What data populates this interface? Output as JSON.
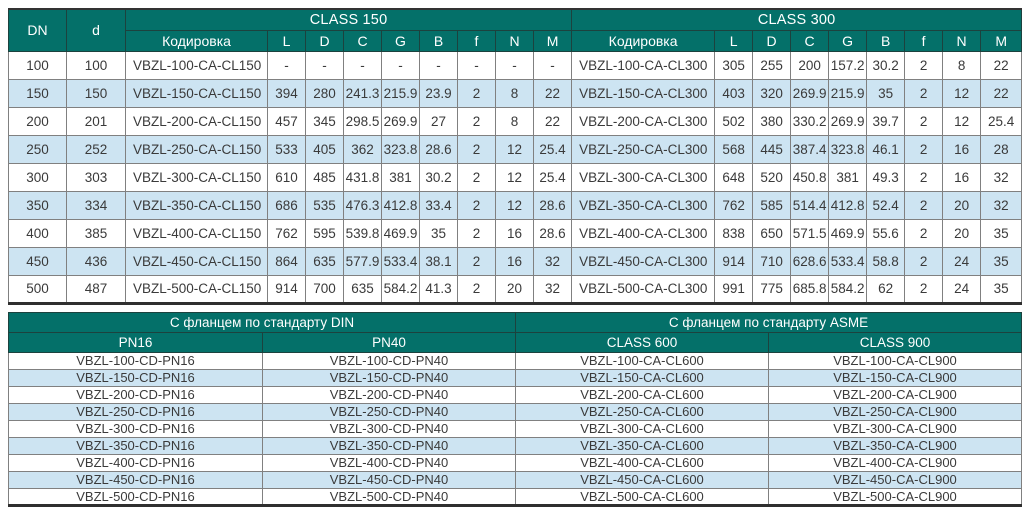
{
  "colors": {
    "header_bg": "#047069",
    "header_text": "#ffffff",
    "alt_row_bg": "#cde4f2",
    "row_bg": "#ffffff",
    "body_text": "#3a3a3a",
    "grid_border": "#808080",
    "outer_border": "#333333"
  },
  "spec_table": {
    "corner_headers": {
      "dn": "DN",
      "d": "d"
    },
    "groups": [
      {
        "label": "CLASS 150"
      },
      {
        "label": "CLASS 300"
      }
    ],
    "sub_headers": [
      "Кодировка",
      "L",
      "D",
      "C",
      "G",
      "B",
      "f",
      "N",
      "M"
    ],
    "rows": [
      {
        "dn": "100",
        "d": "100",
        "class150": {
          "code": "VBZL-100-CA-CL150",
          "values": [
            "-",
            "-",
            "-",
            "-",
            "-",
            "-",
            "-",
            "-"
          ]
        },
        "class300": {
          "code": "VBZL-100-CA-CL300",
          "values": [
            "305",
            "255",
            "200",
            "157.2",
            "30.2",
            "2",
            "8",
            "22"
          ]
        }
      },
      {
        "dn": "150",
        "d": "150",
        "class150": {
          "code": "VBZL-150-CA-CL150",
          "values": [
            "394",
            "280",
            "241.3",
            "215.9",
            "23.9",
            "2",
            "8",
            "22"
          ]
        },
        "class300": {
          "code": "VBZL-150-CA-CL300",
          "values": [
            "403",
            "320",
            "269.9",
            "215.9",
            "35",
            "2",
            "12",
            "22"
          ]
        }
      },
      {
        "dn": "200",
        "d": "201",
        "class150": {
          "code": "VBZL-200-CA-CL150",
          "values": [
            "457",
            "345",
            "298.5",
            "269.9",
            "27",
            "2",
            "8",
            "22"
          ]
        },
        "class300": {
          "code": "VBZL-200-CA-CL300",
          "values": [
            "502",
            "380",
            "330.2",
            "269.9",
            "39.7",
            "2",
            "12",
            "25.4"
          ]
        }
      },
      {
        "dn": "250",
        "d": "252",
        "class150": {
          "code": "VBZL-250-CA-CL150",
          "values": [
            "533",
            "405",
            "362",
            "323.8",
            "28.6",
            "2",
            "12",
            "25.4"
          ]
        },
        "class300": {
          "code": "VBZL-250-CA-CL300",
          "values": [
            "568",
            "445",
            "387.4",
            "323.8",
            "46.1",
            "2",
            "16",
            "28"
          ]
        }
      },
      {
        "dn": "300",
        "d": "303",
        "class150": {
          "code": "VBZL-300-CA-CL150",
          "values": [
            "610",
            "485",
            "431.8",
            "381",
            "30.2",
            "2",
            "12",
            "25.4"
          ]
        },
        "class300": {
          "code": "VBZL-300-CA-CL300",
          "values": [
            "648",
            "520",
            "450.8",
            "381",
            "49.3",
            "2",
            "16",
            "32"
          ]
        }
      },
      {
        "dn": "350",
        "d": "334",
        "class150": {
          "code": "VBZL-350-CA-CL150",
          "values": [
            "686",
            "535",
            "476.3",
            "412.8",
            "33.4",
            "2",
            "12",
            "28.6"
          ]
        },
        "class300": {
          "code": "VBZL-350-CA-CL300",
          "values": [
            "762",
            "585",
            "514.4",
            "412.8",
            "52.4",
            "2",
            "20",
            "32"
          ]
        }
      },
      {
        "dn": "400",
        "d": "385",
        "class150": {
          "code": "VBZL-400-CA-CL150",
          "values": [
            "762",
            "595",
            "539.8",
            "469.9",
            "35",
            "2",
            "16",
            "28.6"
          ]
        },
        "class300": {
          "code": "VBZL-400-CA-CL300",
          "values": [
            "838",
            "650",
            "571.5",
            "469.9",
            "55.6",
            "2",
            "20",
            "35"
          ]
        }
      },
      {
        "dn": "450",
        "d": "436",
        "class150": {
          "code": "VBZL-450-CA-CL150",
          "values": [
            "864",
            "635",
            "577.9",
            "533.4",
            "38.1",
            "2",
            "16",
            "32"
          ]
        },
        "class300": {
          "code": "VBZL-450-CA-CL300",
          "values": [
            "914",
            "710",
            "628.6",
            "533.4",
            "58.8",
            "2",
            "24",
            "35"
          ]
        }
      },
      {
        "dn": "500",
        "d": "487",
        "class150": {
          "code": "VBZL-500-CA-CL150",
          "values": [
            "914",
            "700",
            "635",
            "584.2",
            "41.3",
            "2",
            "20",
            "32"
          ]
        },
        "class300": {
          "code": "VBZL-500-CA-CL300",
          "values": [
            "991",
            "775",
            "685.8",
            "584.2",
            "62",
            "2",
            "24",
            "35"
          ]
        }
      }
    ]
  },
  "flange_table": {
    "groups": [
      {
        "label": "С фланцем по стандарту DIN"
      },
      {
        "label": "С фланцем по стандарту ASME"
      }
    ],
    "col_headers": [
      "PN16",
      "PN40",
      "CLASS 600",
      "CLASS 900"
    ],
    "rows": [
      [
        "VBZL-100-CD-PN16",
        "VBZL-100-CD-PN40",
        "VBZL-100-CA-CL600",
        "VBZL-100-CA-CL900"
      ],
      [
        "VBZL-150-CD-PN16",
        "VBZL-150-CD-PN40",
        "VBZL-150-CA-CL600",
        "VBZL-150-CA-CL900"
      ],
      [
        "VBZL-200-CD-PN16",
        "VBZL-200-CD-PN40",
        "VBZL-200-CA-CL600",
        "VBZL-200-CA-CL900"
      ],
      [
        "VBZL-250-CD-PN16",
        "VBZL-250-CD-PN40",
        "VBZL-250-CA-CL600",
        "VBZL-250-CA-CL900"
      ],
      [
        "VBZL-300-CD-PN16",
        "VBZL-300-CD-PN40",
        "VBZL-300-CA-CL600",
        "VBZL-300-CA-CL900"
      ],
      [
        "VBZL-350-CD-PN16",
        "VBZL-350-CD-PN40",
        "VBZL-350-CA-CL600",
        "VBZL-350-CA-CL900"
      ],
      [
        "VBZL-400-CD-PN16",
        "VBZL-400-CD-PN40",
        "VBZL-400-CA-CL600",
        "VBZL-400-CA-CL900"
      ],
      [
        "VBZL-450-CD-PN16",
        "VBZL-450-CD-PN40",
        "VBZL-450-CA-CL600",
        "VBZL-450-CA-CL900"
      ],
      [
        "VBZL-500-CD-PN16",
        "VBZL-500-CD-PN40",
        "VBZL-500-CA-CL600",
        "VBZL-500-CA-CL900"
      ]
    ]
  }
}
